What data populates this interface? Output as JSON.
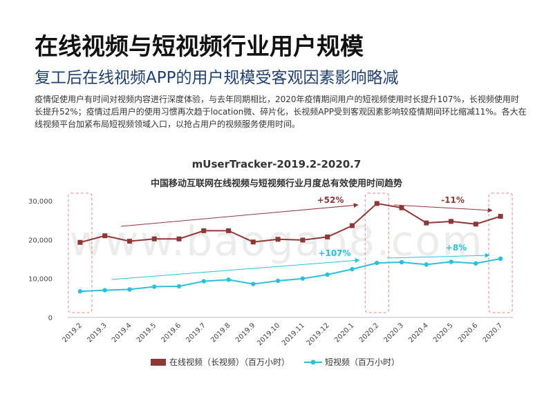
{
  "slide": {
    "title": "在线视频与短视频行业用户规模",
    "subtitle": "复工后在线视频APP的用户规模受客观因素影响略减",
    "body": "疫情促使用户有时间对视频内容进行深度体验，与去年同期相比，2020年疫情期间用户的短视频使用时长提升107%，长视频使用时长提升52%；疫情过后用户的使用习惯再次趋于location微、碎片化，长视频APP受到客观因素影响较疫情期间环比缩减11%。各大在线视频平台加紧布局短视频领域入口，以抢占用户的视频服务使用时间。"
  },
  "watermark": "www.baogao8.com",
  "chart_data": {
    "type": "line",
    "title": "mUserTracker-2019.2-2020.7",
    "subtitle": "中国移动互联网在线视频与短视频行业月度总有效使用时间趋势",
    "categories": [
      "2019.2",
      "2019.3",
      "2019.4",
      "2019.5",
      "2019.6",
      "2019.7",
      "2019.8",
      "2019.9",
      "2019.10",
      "2019.11",
      "2019.12",
      "2020.1",
      "2020.2",
      "2020.3",
      "2020.4",
      "2020.5",
      "2020.6",
      "2020.7"
    ],
    "series": [
      {
        "name": "在线视频（长视频）（百万小时）",
        "color": "#8f3636",
        "values": [
          19300,
          21000,
          19600,
          20200,
          20200,
          22300,
          22300,
          19400,
          20100,
          19900,
          20700,
          23600,
          29300,
          28200,
          24300,
          24700,
          24000,
          26000
        ]
      },
      {
        "name": "短视频（百万小时）",
        "color": "#29c0de",
        "values": [
          6700,
          7000,
          7200,
          7900,
          8000,
          9300,
          9700,
          8600,
          9400,
          10000,
          11000,
          12400,
          14000,
          14200,
          13600,
          14300,
          13900,
          15100
        ]
      }
    ],
    "yticks": [
      "0",
      "10,000",
      "20,000",
      "30,000"
    ],
    "ylim": [
      0,
      30000
    ],
    "grid": false,
    "legend": "bottom",
    "annotations": {
      "long_yoy": "+52%",
      "long_mom": "-11%",
      "short_yoy": "+107%",
      "short_mom": "+8%"
    }
  }
}
